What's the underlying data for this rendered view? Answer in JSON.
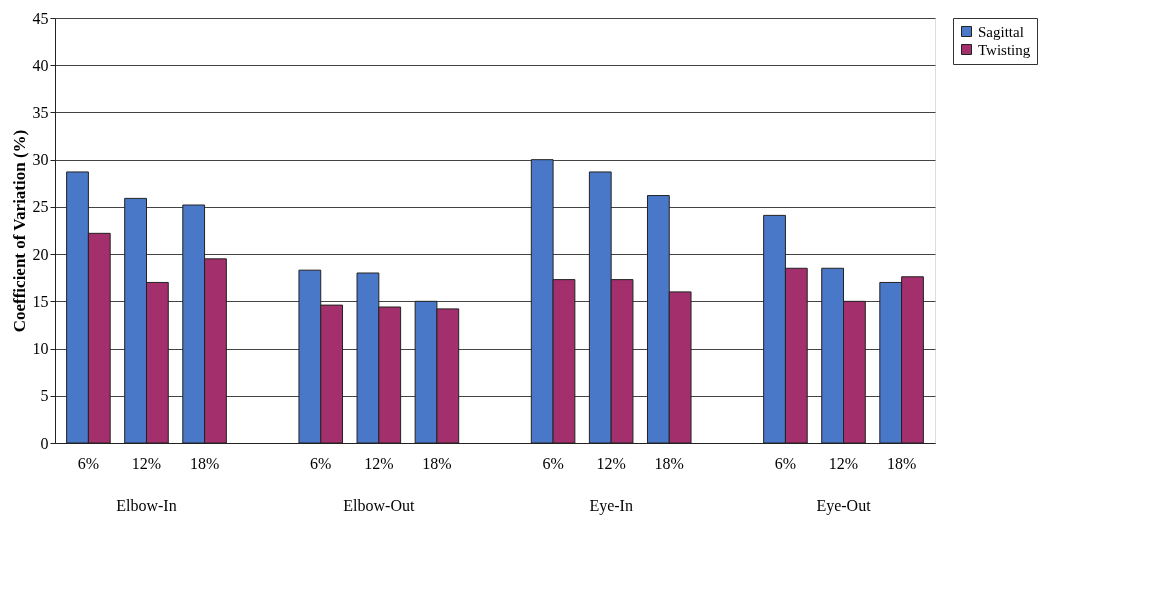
{
  "chart_data": {
    "type": "bar",
    "ylabel": "Coefficient of Variation (%)",
    "categories": [
      "6%",
      "12%",
      "18%",
      null,
      "6%",
      "12%",
      "18%",
      null,
      "6%",
      "12%",
      "18%",
      null,
      "6%",
      "12%",
      "18%"
    ],
    "series": [
      {
        "name": "Sagittal",
        "color": "#4a78c8",
        "values": [
          28.7,
          25.9,
          25.2,
          null,
          18.3,
          18.0,
          15.0,
          null,
          30.0,
          28.7,
          26.2,
          null,
          24.1,
          18.5,
          17.0
        ]
      },
      {
        "name": "Twisting",
        "color": "#a3306c",
        "values": [
          22.2,
          17.0,
          19.5,
          null,
          14.6,
          14.4,
          14.2,
          null,
          17.3,
          17.3,
          16.0,
          null,
          18.5,
          15.0,
          17.6
        ]
      }
    ],
    "annotations": [
      "Elbow-In",
      "Elbow-Out",
      "Eye-In",
      "Eye-Out"
    ],
    "ylim": [
      0,
      45
    ],
    "yticks": [
      0,
      5,
      10,
      15,
      20,
      25,
      30,
      35,
      40,
      45
    ],
    "grid": "y",
    "legend": "right"
  }
}
